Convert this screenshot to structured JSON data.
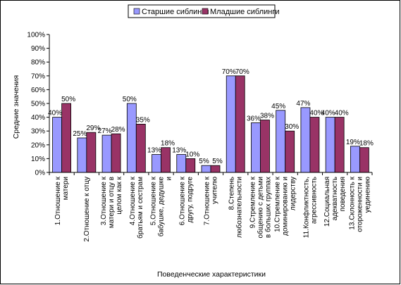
{
  "chart_data": {
    "type": "bar",
    "title": "",
    "xlabel": "Поведенческие характеристики",
    "ylabel": "Средние значения",
    "ylim": [
      0,
      100
    ],
    "yticks": [
      "0%",
      "10%",
      "20%",
      "30%",
      "40%",
      "50%",
      "60%",
      "70%",
      "80%",
      "90%",
      "100%"
    ],
    "grid": false,
    "legend_position": "top",
    "categories": [
      [
        "1.Отношение к",
        "матери"
      ],
      [
        "2.Отношение к отцу"
      ],
      [
        "3.Отношение к",
        "матери и отцу в",
        "целом как к"
      ],
      [
        "4.Отношение к",
        "братьям и сестрам"
      ],
      [
        "5.Отношение к",
        "бабушке, дедушке",
        "и"
      ],
      [
        "6.Отношение к",
        "другу, подруге"
      ],
      [
        "7.Отношение к",
        "учителю"
      ],
      [
        "8.Степень",
        "любознательности"
      ],
      [
        "9.Стремление к",
        "общению с детьми",
        "в больших группах"
      ],
      [
        "10.Стремление к",
        "доминированию и",
        "лидерству"
      ],
      [
        "11.Конфликтность,",
        "агрессивность"
      ],
      [
        "12.Социальная",
        "адекватность",
        "поведения"
      ],
      [
        "13.Склонность к",
        "отороженности и",
        "уединению"
      ]
    ],
    "series": [
      {
        "name": "Старшие сиблинги",
        "color": "#9999ff",
        "values": [
          40,
          25,
          27,
          50,
          13,
          13,
          5,
          70,
          36,
          45,
          47,
          40,
          19
        ],
        "labels": [
          "40%",
          "25%",
          "27%",
          "50%",
          "13%",
          "13%",
          "5%",
          "70%",
          "36%",
          "45%",
          "47%",
          "40%",
          "19%"
        ]
      },
      {
        "name": "Младшие сиблинги",
        "color": "#993366",
        "values": [
          50,
          29,
          28,
          35,
          18,
          10,
          5,
          70,
          38,
          30,
          40,
          40,
          18
        ],
        "labels": [
          "50%",
          "29%",
          "28%",
          "35%",
          "18%",
          "10%",
          "5%",
          "70%",
          "38%",
          "30%",
          "40%",
          "40%",
          "18%"
        ]
      }
    ]
  }
}
